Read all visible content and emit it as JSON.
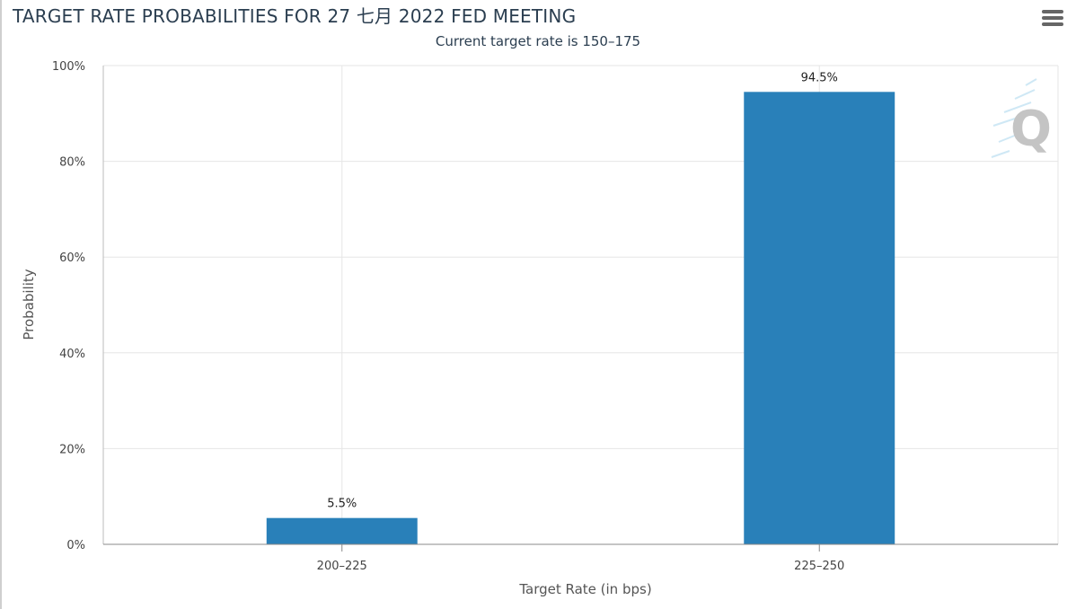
{
  "chart_data": {
    "type": "bar",
    "title": "TARGET RATE PROBABILITIES FOR 27 七月 2022 FED MEETING",
    "subtitle": "Current target rate is 150–175",
    "xlabel": "Target Rate (in bps)",
    "ylabel": "Probability",
    "categories": [
      "200–225",
      "225–250"
    ],
    "values": [
      5.5,
      94.5
    ],
    "data_labels": [
      "5.5%",
      "94.5%"
    ],
    "y_ticks": [
      0,
      20,
      40,
      60,
      80,
      100
    ],
    "y_tick_labels": [
      "0%",
      "20%",
      "40%",
      "60%",
      "80%",
      "100%"
    ],
    "ylim": [
      0,
      100
    ],
    "grid": true,
    "legend": "none",
    "bar_color": "#2980b9"
  },
  "icons": {
    "menu": "hamburger-menu-icon",
    "watermark": "q-logo-watermark"
  }
}
